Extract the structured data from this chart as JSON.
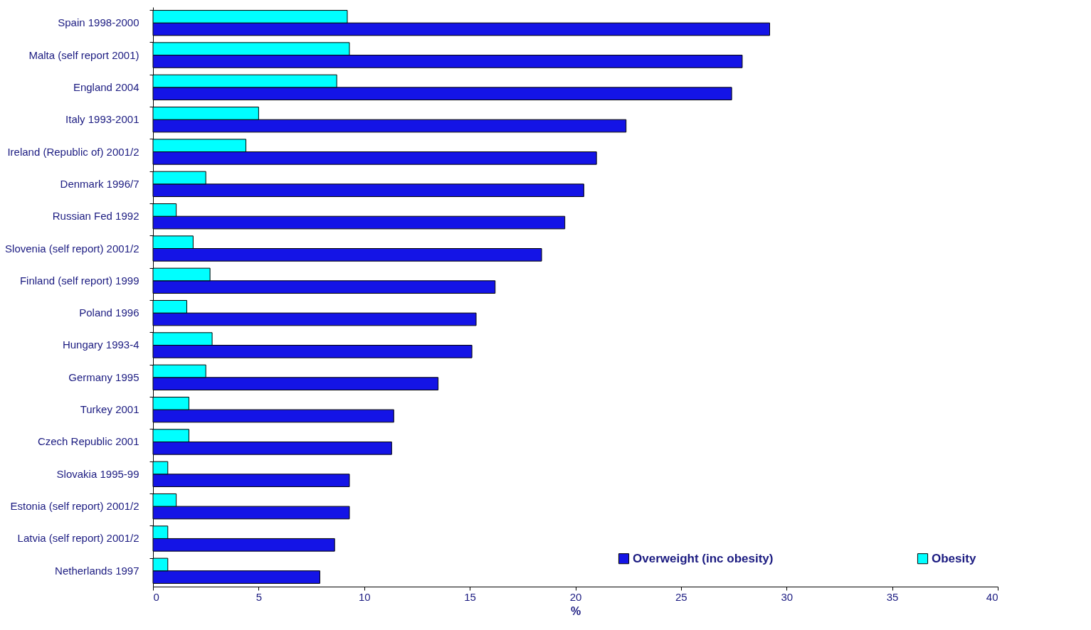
{
  "chart_data": {
    "type": "bar",
    "orientation": "horizontal",
    "xlabel": "%",
    "categories": [
      "Spain 1998-2000",
      "Malta (self report 2001)",
      "England 2004",
      "Italy 1993-2001",
      "Ireland (Republic of) 2001/2",
      "Denmark 1996/7",
      "Russian Fed 1992",
      "Slovenia (self report) 2001/2",
      "Finland (self report) 1999",
      "Poland 1996",
      "Hungary 1993-4",
      "Germany 1995",
      "Turkey 2001",
      "Czech Republic 2001",
      "Slovakia 1995-99",
      "Estonia (self report) 2001/2",
      "Latvia (self report) 2001/2",
      "Netherlands 1997"
    ],
    "series": [
      {
        "name": "Overweight (inc obesity)",
        "color": "#1414e6",
        "values": [
          29.2,
          27.9,
          27.4,
          22.4,
          21.0,
          20.4,
          19.5,
          18.4,
          16.2,
          15.3,
          15.1,
          13.5,
          11.4,
          11.3,
          9.3,
          9.3,
          8.6,
          7.9
        ]
      },
      {
        "name": "Obesity",
        "color": "#00ffff",
        "values": [
          9.2,
          9.3,
          8.7,
          5.0,
          4.4,
          2.5,
          1.1,
          1.9,
          2.7,
          1.6,
          2.8,
          2.5,
          1.7,
          1.7,
          0.7,
          1.1,
          0.7,
          0.7
        ]
      }
    ],
    "xlim": [
      0,
      40
    ],
    "xticks": [
      0,
      5,
      10,
      15,
      20,
      25,
      30,
      35,
      40
    ],
    "grid": false,
    "legend": "bottom right"
  }
}
